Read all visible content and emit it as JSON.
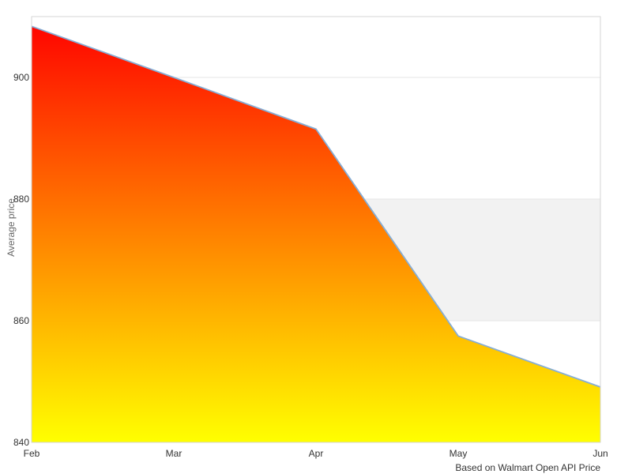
{
  "chart_data": {
    "type": "area",
    "categories": [
      "Feb",
      "Mar",
      "Apr",
      "May",
      "Jun"
    ],
    "series": [
      {
        "name": "Average price",
        "values": [
          908.4,
          900.0,
          891.5,
          857.5,
          849.1
        ]
      }
    ],
    "title": "",
    "xlabel": "",
    "ylabel": "Average price",
    "ylim": [
      840,
      910
    ],
    "yticks": [
      840,
      860,
      880,
      900
    ],
    "grid": true,
    "legend": "none",
    "plot_band": {
      "from": 860,
      "to": 880,
      "color": "#f2f2f2"
    },
    "caption": "Based on Walmart Open API Price",
    "colors": {
      "line": "#86aed6",
      "area_top": "#ff0000",
      "area_bottom": "#ffff00",
      "gridline": "#e6e6e6",
      "plot_border": "#d6d6d6",
      "tick_label": "#333333",
      "axis_title": "#666666",
      "background": "#ffffff"
    }
  }
}
